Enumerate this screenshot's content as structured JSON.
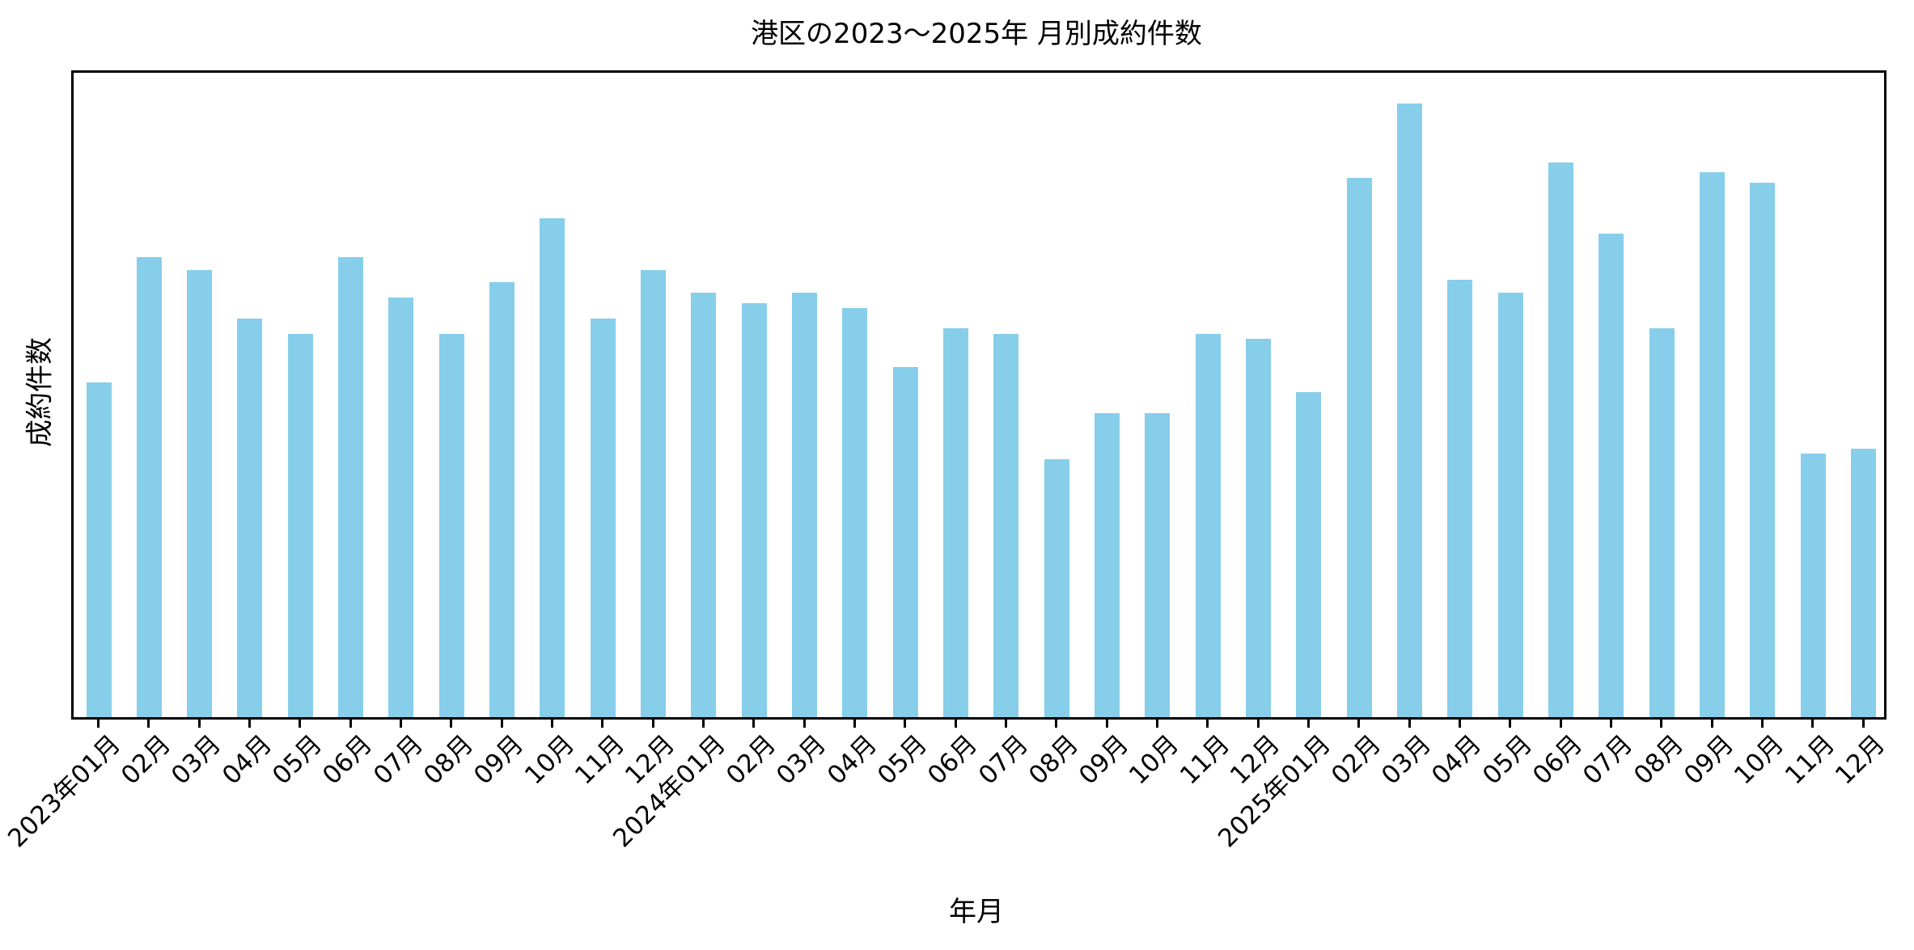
{
  "title": "港区の2023〜2025年 月別成約件数",
  "axes": {
    "x_label": "年月",
    "y_label": "成約件数"
  },
  "colors": {
    "bar": "#87CEEB",
    "spine": "#000000",
    "background": "#FFFFFF",
    "text": "#000000"
  },
  "chart_data": {
    "type": "bar",
    "title": "港区の2023〜2025年 月別成約件数",
    "xlabel": "年月",
    "ylabel": "成約件数",
    "categories": [
      "2023年01月",
      "02月",
      "03月",
      "04月",
      "05月",
      "06月",
      "07月",
      "08月",
      "09月",
      "10月",
      "11月",
      "12月",
      "2024年01月",
      "02月",
      "03月",
      "04月",
      "05月",
      "06月",
      "07月",
      "08月",
      "09月",
      "10月",
      "11月",
      "12月",
      "2025年01月",
      "02月",
      "03月",
      "04月",
      "05月",
      "06月",
      "07月",
      "08月",
      "09月",
      "10月",
      "11月",
      "12月"
    ],
    "values": [
      131,
      180,
      175,
      156,
      150,
      180,
      164,
      150,
      170,
      195,
      156,
      175,
      166,
      162,
      166,
      160,
      137,
      152,
      150,
      101,
      119,
      119,
      150,
      148,
      127,
      211,
      240,
      171,
      166,
      217,
      189,
      152,
      213,
      209,
      103,
      105
    ],
    "ylim": [
      0,
      252
    ],
    "y_tick_labels_visible": false,
    "x_tick_rotation_deg": 45,
    "grid": false,
    "legend": "none",
    "bar_color": "#87CEEB",
    "note": "y-axis shows no numeric tick labels; values are estimated in arbitrary units proportional to bar heights"
  }
}
